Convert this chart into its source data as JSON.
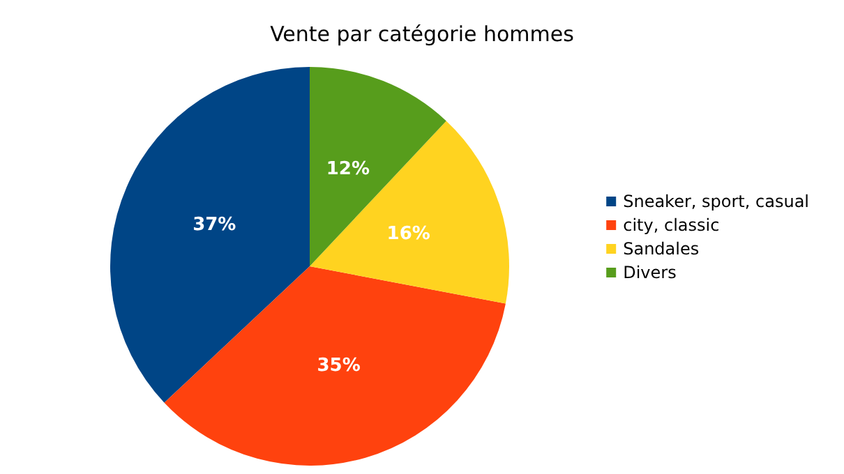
{
  "chart_data": {
    "type": "pie",
    "title": "Vente par catégorie hommes",
    "categories": [
      "Sneaker, sport, casual",
      "city, classic",
      "Sandales",
      "Divers"
    ],
    "values": [
      37,
      35,
      16,
      12
    ],
    "colors": [
      "#004586",
      "#ff420e",
      "#ffd320",
      "#579d1c"
    ],
    "value_labels": [
      "37%",
      "35%",
      "16%",
      "12%"
    ],
    "legend": "right"
  }
}
